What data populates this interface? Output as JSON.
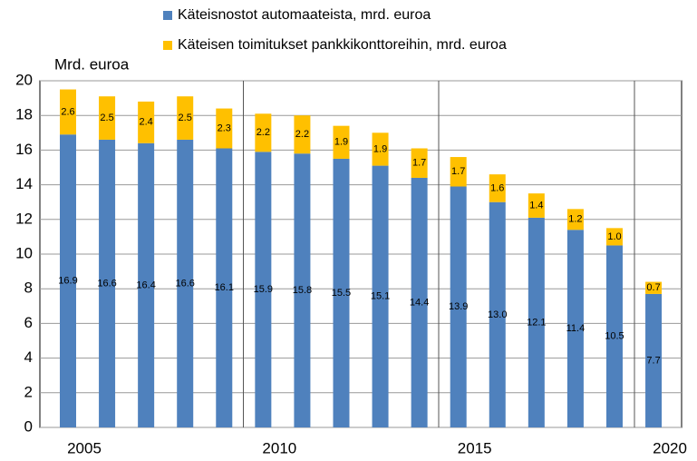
{
  "chart_data": {
    "type": "stacked_bar",
    "y_label": "Mrd. euroa",
    "categories": [
      "2005",
      null,
      null,
      null,
      null,
      "2010",
      null,
      null,
      null,
      null,
      "2015",
      null,
      null,
      null,
      null,
      "2020"
    ],
    "series": [
      {
        "name": "Käteisnostot automaateista, mrd. euroa",
        "color": "#4f81bd",
        "values": [
          16.9,
          16.6,
          16.4,
          16.6,
          16.1,
          15.9,
          15.8,
          15.5,
          15.1,
          14.4,
          13.9,
          13.0,
          12.1,
          11.4,
          10.5,
          7.7
        ],
        "value_labels": [
          "16.9",
          "16.6",
          "16.4",
          "16.6",
          "16.1",
          "15.9",
          "15.8",
          "15.5",
          "15.1",
          "14.4",
          "13.9",
          "13.0",
          "12.1",
          "11.4",
          "10.5",
          "7.7"
        ]
      },
      {
        "name": "Käteisen toimitukset pankkikonttoreihin, mrd. euroa",
        "color": "#ffc000",
        "values": [
          2.6,
          2.5,
          2.4,
          2.5,
          2.3,
          2.2,
          2.2,
          1.9,
          1.9,
          1.7,
          1.7,
          1.6,
          1.4,
          1.2,
          1.0,
          0.7
        ],
        "value_labels": [
          "2.6",
          "2.5",
          "2.4",
          "2.5",
          "2.3",
          "2.2",
          "2.2",
          "1.9",
          "1.9",
          "1.7",
          "1.7",
          "1.6",
          "1.4",
          "1.2",
          "1.0",
          "0.7"
        ]
      }
    ],
    "ylim": [
      0,
      20
    ],
    "yticks": [
      0,
      2,
      4,
      6,
      8,
      10,
      12,
      14,
      16,
      18,
      20
    ],
    "grid": true
  }
}
